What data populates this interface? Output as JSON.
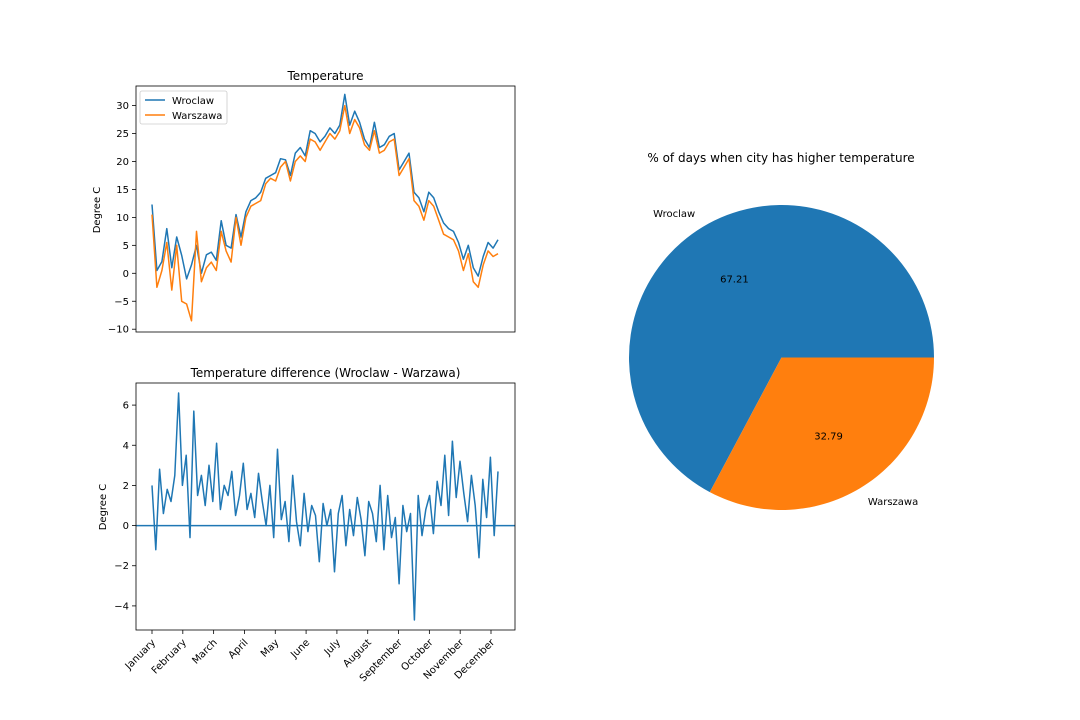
{
  "colors": {
    "wroclaw": "#1f77b4",
    "warszawa": "#ff7f0e",
    "axes": "#000000",
    "background": "#ffffff"
  },
  "chart_data": [
    {
      "type": "line",
      "title": "Temperature",
      "xlabel": "",
      "ylabel": "Degree C",
      "ylim": [
        -10.5,
        33.5
      ],
      "yticks": [
        -10,
        -5,
        0,
        5,
        10,
        15,
        20,
        25,
        30
      ],
      "ytick_labels": [
        "−10",
        "−5",
        "0",
        "5",
        "10",
        "15",
        "20",
        "25",
        "30"
      ],
      "grid": false,
      "legend": "upper-left",
      "series": [
        {
          "name": "Wroclaw",
          "values": [
            12.3,
            0.5,
            2.1,
            8.0,
            1.0,
            6.5,
            3.2,
            -1.0,
            1.5,
            5.0,
            0.0,
            3.3,
            3.8,
            2.3,
            9.4,
            5.0,
            4.5,
            10.5,
            6.5,
            11.0,
            13.0,
            13.5,
            14.5,
            17.0,
            17.5,
            18.0,
            20.5,
            20.3,
            17.5,
            21.5,
            22.5,
            21.0,
            25.5,
            25.0,
            23.5,
            24.5,
            26.0,
            25.0,
            26.5,
            32.0,
            26.5,
            29.0,
            27.0,
            24.0,
            22.5,
            27.0,
            22.5,
            23.0,
            24.5,
            25.0,
            18.5,
            20.0,
            21.5,
            14.5,
            13.5,
            11.0,
            14.5,
            13.5,
            11.0,
            9.0,
            8.0,
            7.5,
            5.5,
            2.5,
            5.0,
            1.0,
            -0.5,
            3.0,
            5.5,
            4.5,
            6.0
          ],
          "x_start": "January",
          "x_end": "December"
        },
        {
          "name": "Warszawa",
          "values": [
            10.5,
            -2.5,
            0.5,
            5.5,
            -3.0,
            5.0,
            -5.0,
            -5.5,
            -8.5,
            7.5,
            -1.5,
            1.0,
            2.0,
            0.5,
            7.5,
            4.0,
            2.0,
            10.0,
            5.0,
            10.0,
            12.0,
            12.5,
            13.0,
            16.0,
            17.0,
            16.5,
            19.0,
            20.0,
            16.5,
            20.0,
            21.0,
            20.0,
            24.0,
            23.5,
            22.0,
            23.5,
            25.0,
            24.0,
            25.5,
            30.0,
            25.0,
            27.5,
            26.0,
            23.0,
            22.0,
            25.5,
            21.5,
            22.0,
            23.5,
            24.0,
            17.5,
            19.0,
            20.5,
            13.0,
            12.0,
            9.5,
            13.0,
            12.0,
            9.5,
            7.0,
            6.5,
            6.0,
            4.0,
            0.5,
            3.5,
            -1.5,
            -2.5,
            1.5,
            4.0,
            3.0,
            3.5
          ],
          "x_start": "January",
          "x_end": "December"
        }
      ]
    },
    {
      "type": "line",
      "title": "Temperature difference (Wroclaw - Warzawa)",
      "xlabel": "",
      "ylabel": "Degree C",
      "ylim": [
        -5.2,
        7.1
      ],
      "yticks": [
        -4,
        -2,
        0,
        2,
        4,
        6
      ],
      "ytick_labels": [
        "−4",
        "−2",
        "0",
        "2",
        "4",
        "6"
      ],
      "xtick_labels": [
        "January",
        "February",
        "March",
        "April",
        "May",
        "June",
        "July",
        "August",
        "September",
        "October",
        "November",
        "December"
      ],
      "hline": 0,
      "grid": false,
      "series": [
        {
          "name": "Wroclaw - Warszawa",
          "values": [
            2.0,
            -1.2,
            2.8,
            0.6,
            1.8,
            1.2,
            2.5,
            6.6,
            2.0,
            3.5,
            -0.6,
            5.7,
            1.5,
            2.5,
            1.0,
            3.0,
            1.2,
            4.1,
            0.8,
            2.0,
            1.5,
            2.7,
            0.5,
            1.5,
            3.1,
            0.8,
            1.6,
            0.4,
            2.6,
            1.2,
            0.0,
            2.0,
            -0.6,
            3.8,
            0.3,
            1.2,
            -0.8,
            2.5,
            0.2,
            -1.0,
            1.6,
            -0.3,
            1.0,
            0.5,
            -1.8,
            1.1,
            0.0,
            0.8,
            -2.3,
            0.6,
            1.5,
            -1.0,
            0.8,
            -0.5,
            1.4,
            0.3,
            -1.5,
            1.2,
            0.6,
            -0.8,
            2.0,
            -1.2,
            1.5,
            -0.6,
            0.4,
            -2.9,
            1.0,
            -0.3,
            0.6,
            -4.7,
            1.5,
            -0.5,
            0.8,
            1.5,
            -0.4,
            2.2,
            1.0,
            3.5,
            0.5,
            4.2,
            1.4,
            3.2,
            1.6,
            0.2,
            2.5,
            1.0,
            -1.6,
            2.3,
            0.4,
            3.4,
            -0.5,
            2.7
          ],
          "x_start": "January",
          "x_end": "December"
        }
      ]
    },
    {
      "type": "pie",
      "title": "% of days when city has higher temperature",
      "labels": [
        "Wroclaw",
        "Warszawa"
      ],
      "values": [
        67.21,
        32.79
      ],
      "value_labels": [
        "67.21",
        "32.79"
      ]
    }
  ]
}
